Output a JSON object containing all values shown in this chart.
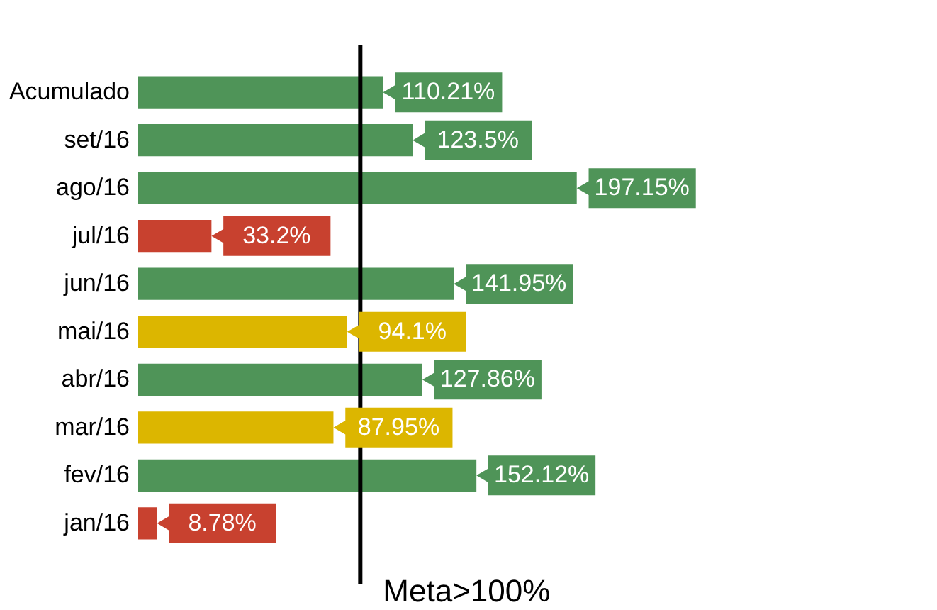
{
  "chart_data": {
    "type": "bar",
    "orientation": "horizontal",
    "categories": [
      "Acumulado",
      "set/16",
      "ago/16",
      "jul/16",
      "jun/16",
      "mai/16",
      "abr/16",
      "mar/16",
      "fev/16",
      "jan/16"
    ],
    "values": [
      110.21,
      123.5,
      197.15,
      33.2,
      141.95,
      94.1,
      127.86,
      87.95,
      152.12,
      8.78
    ],
    "value_labels": [
      "110.21%",
      "123.5%",
      "197.15%",
      "33.2%",
      "141.95%",
      "94.1%",
      "127.86%",
      "87.95%",
      "152.12%",
      "8.78%"
    ],
    "colors": [
      "#4f9458",
      "#4f9458",
      "#4f9458",
      "#c8412f",
      "#4f9458",
      "#dcb600",
      "#4f9458",
      "#dcb600",
      "#4f9458",
      "#c8412f"
    ],
    "ref_lines": [
      {
        "axis": "x",
        "value": 100,
        "label": "Meta>100%",
        "color": "#000000"
      }
    ],
    "tick_labels": "y"
  }
}
